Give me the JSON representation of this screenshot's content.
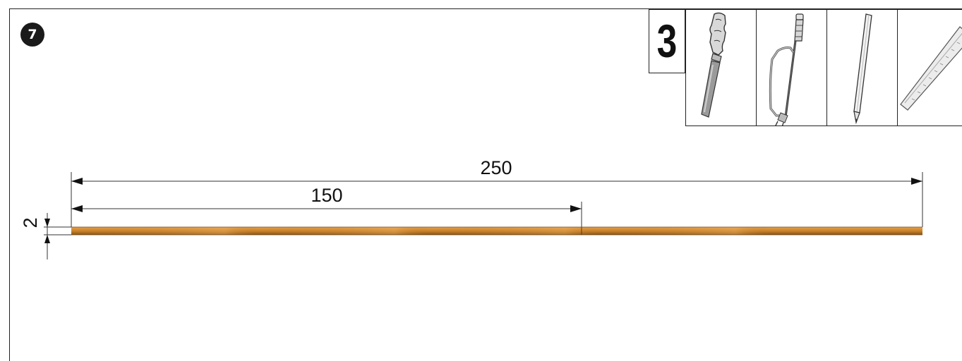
{
  "step": {
    "number": "7"
  },
  "quantity": {
    "value": "3"
  },
  "tools": [
    {
      "name": "file-icon"
    },
    {
      "name": "hacksaw-icon"
    },
    {
      "name": "pencil-icon"
    },
    {
      "name": "ruler-icon"
    }
  ],
  "dimensions": {
    "total_length": "250",
    "partial_length": "150",
    "thickness": "2"
  },
  "colors": {
    "rod": "#c9822a",
    "rod_highlight": "#e39a45",
    "rod_shadow": "#8a5414"
  }
}
